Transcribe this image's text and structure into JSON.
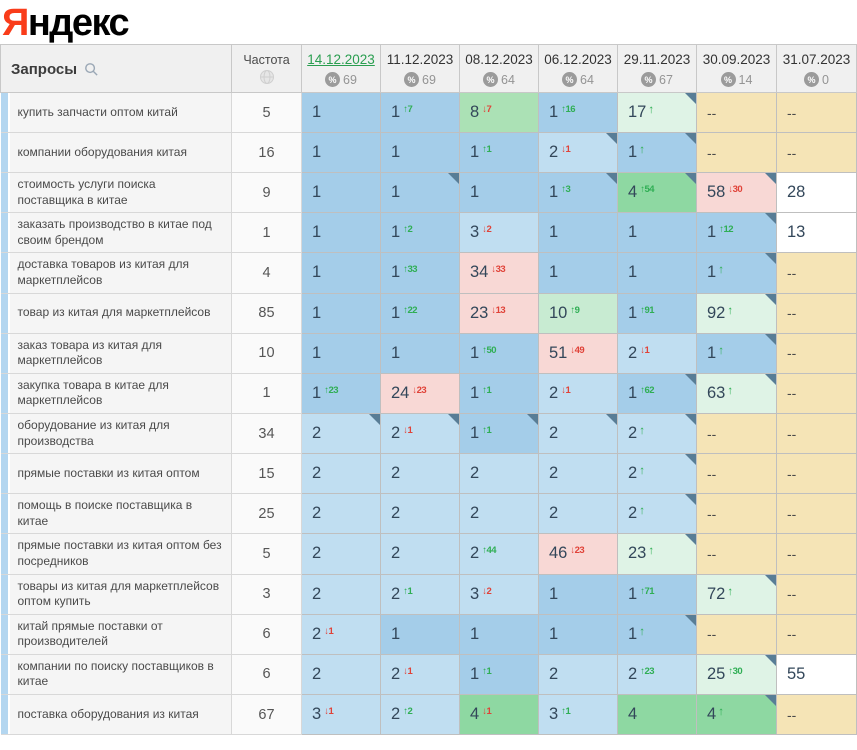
{
  "logo": {
    "first_letter": "Я",
    "rest": "ндекс"
  },
  "colors": {
    "blue": "#a4cde9",
    "lightblue": "#c0def1",
    "green4": "#8ed8a2",
    "green8": "#abe1b5",
    "green10": "#c8ebd2",
    "palegreen": "#dff3e6",
    "pink": "#f8d8d5",
    "beige": "#f5e4b6",
    "white": "#ffffff",
    "up": "#2fae54",
    "down": "#e04238",
    "selected_date": "#2a9e50",
    "corner": "#587d96"
  },
  "table": {
    "queries_header": "Запросы",
    "frequency_header": "Частота",
    "no_data_text": "--",
    "date_columns": [
      {
        "label": "14.12.2023",
        "count": "69",
        "selected": true
      },
      {
        "label": "11.12.2023",
        "count": "69",
        "selected": false
      },
      {
        "label": "08.12.2023",
        "count": "64",
        "selected": false
      },
      {
        "label": "06.12.2023",
        "count": "64",
        "selected": false
      },
      {
        "label": "29.11.2023",
        "count": "67",
        "selected": false
      },
      {
        "label": "30.09.2023",
        "count": "14",
        "selected": false
      },
      {
        "label": "31.07.2023",
        "count": "0",
        "selected": false
      }
    ],
    "rows": [
      {
        "query": "купить запчасти оптом китай",
        "frequency": "5",
        "cells": [
          {
            "value": "1",
            "color": "blue"
          },
          {
            "value": "1",
            "change": "7",
            "dir": "up",
            "color": "blue"
          },
          {
            "value": "8",
            "change": "7",
            "dir": "down",
            "color": "green8"
          },
          {
            "value": "1",
            "change": "16",
            "dir": "up",
            "color": "blue"
          },
          {
            "value": "17",
            "dir": "up",
            "color": "palegreen",
            "corner": true
          },
          {
            "value": "--",
            "color": "beige"
          },
          {
            "value": "--",
            "color": "beige"
          }
        ]
      },
      {
        "query": "компании оборудования китая",
        "frequency": "16",
        "cells": [
          {
            "value": "1",
            "color": "blue"
          },
          {
            "value": "1",
            "color": "blue"
          },
          {
            "value": "1",
            "change": "1",
            "dir": "up",
            "color": "blue"
          },
          {
            "value": "2",
            "change": "1",
            "dir": "down",
            "color": "lightblue",
            "corner": true
          },
          {
            "value": "1",
            "dir": "up",
            "color": "blue",
            "corner": true
          },
          {
            "value": "--",
            "color": "beige"
          },
          {
            "value": "--",
            "color": "beige"
          }
        ]
      },
      {
        "query": "стоимость услуги поиска поставщика в китае",
        "frequency": "9",
        "cells": [
          {
            "value": "1",
            "color": "blue"
          },
          {
            "value": "1",
            "color": "blue",
            "corner": true
          },
          {
            "value": "1",
            "color": "blue"
          },
          {
            "value": "1",
            "change": "3",
            "dir": "up",
            "color": "blue",
            "corner": true
          },
          {
            "value": "4",
            "change": "54",
            "dir": "up",
            "color": "green4",
            "corner": true
          },
          {
            "value": "58",
            "change": "30",
            "dir": "down",
            "color": "pink",
            "corner": true
          },
          {
            "value": "28",
            "color": "white"
          }
        ]
      },
      {
        "query": "заказать производство в китае под своим брендом",
        "frequency": "1",
        "cells": [
          {
            "value": "1",
            "color": "blue"
          },
          {
            "value": "1",
            "change": "2",
            "dir": "up",
            "color": "blue"
          },
          {
            "value": "3",
            "change": "2",
            "dir": "down",
            "color": "lightblue"
          },
          {
            "value": "1",
            "color": "blue"
          },
          {
            "value": "1",
            "color": "blue"
          },
          {
            "value": "1",
            "change": "12",
            "dir": "up",
            "color": "blue",
            "corner": true
          },
          {
            "value": "13",
            "color": "white"
          }
        ]
      },
      {
        "query": "доставка товаров из китая для маркетплейсов",
        "frequency": "4",
        "cells": [
          {
            "value": "1",
            "color": "blue"
          },
          {
            "value": "1",
            "change": "33",
            "dir": "up",
            "color": "blue"
          },
          {
            "value": "34",
            "change": "33",
            "dir": "down",
            "color": "pink"
          },
          {
            "value": "1",
            "color": "blue"
          },
          {
            "value": "1",
            "color": "blue"
          },
          {
            "value": "1",
            "dir": "up",
            "color": "blue",
            "corner": true
          },
          {
            "value": "--",
            "color": "beige"
          }
        ]
      },
      {
        "query": "товар из китая для маркетплейсов",
        "frequency": "85",
        "cells": [
          {
            "value": "1",
            "color": "blue"
          },
          {
            "value": "1",
            "change": "22",
            "dir": "up",
            "color": "blue"
          },
          {
            "value": "23",
            "change": "13",
            "dir": "down",
            "color": "pink"
          },
          {
            "value": "10",
            "change": "9",
            "dir": "up",
            "color": "green10"
          },
          {
            "value": "1",
            "change": "91",
            "dir": "up",
            "color": "blue"
          },
          {
            "value": "92",
            "dir": "up",
            "color": "palegreen",
            "corner": true
          },
          {
            "value": "--",
            "color": "beige"
          }
        ]
      },
      {
        "query": "заказ товара из китая для маркетплейсов",
        "frequency": "10",
        "cells": [
          {
            "value": "1",
            "color": "blue"
          },
          {
            "value": "1",
            "color": "blue"
          },
          {
            "value": "1",
            "change": "50",
            "dir": "up",
            "color": "blue"
          },
          {
            "value": "51",
            "change": "49",
            "dir": "down",
            "color": "pink"
          },
          {
            "value": "2",
            "change": "1",
            "dir": "down",
            "color": "lightblue"
          },
          {
            "value": "1",
            "dir": "up",
            "color": "blue",
            "corner": true
          },
          {
            "value": "--",
            "color": "beige"
          }
        ]
      },
      {
        "query": "закупка товара в китае для маркетплейсов",
        "frequency": "1",
        "cells": [
          {
            "value": "1",
            "change": "23",
            "dir": "up",
            "color": "blue"
          },
          {
            "value": "24",
            "change": "23",
            "dir": "down",
            "color": "pink"
          },
          {
            "value": "1",
            "change": "1",
            "dir": "up",
            "color": "blue"
          },
          {
            "value": "2",
            "change": "1",
            "dir": "down",
            "color": "lightblue"
          },
          {
            "value": "1",
            "change": "62",
            "dir": "up",
            "color": "blue",
            "corner": true
          },
          {
            "value": "63",
            "dir": "up",
            "color": "palegreen",
            "corner": true
          },
          {
            "value": "--",
            "color": "beige"
          }
        ]
      },
      {
        "query": "оборудование из китая для производства",
        "frequency": "34",
        "cells": [
          {
            "value": "2",
            "color": "lightblue",
            "corner": true
          },
          {
            "value": "2",
            "change": "1",
            "dir": "down",
            "color": "lightblue",
            "corner": true
          },
          {
            "value": "1",
            "change": "1",
            "dir": "up",
            "color": "blue",
            "corner": true
          },
          {
            "value": "2",
            "color": "lightblue",
            "corner": true
          },
          {
            "value": "2",
            "dir": "up",
            "color": "lightblue",
            "corner": true
          },
          {
            "value": "--",
            "color": "beige"
          },
          {
            "value": "--",
            "color": "beige"
          }
        ]
      },
      {
        "query": "прямые поставки из китая оптом",
        "frequency": "15",
        "cells": [
          {
            "value": "2",
            "color": "lightblue"
          },
          {
            "value": "2",
            "color": "lightblue"
          },
          {
            "value": "2",
            "color": "lightblue"
          },
          {
            "value": "2",
            "color": "lightblue"
          },
          {
            "value": "2",
            "dir": "up",
            "color": "lightblue",
            "corner": true
          },
          {
            "value": "--",
            "color": "beige"
          },
          {
            "value": "--",
            "color": "beige"
          }
        ]
      },
      {
        "query": "помощь в поиске поставщика в китае",
        "frequency": "25",
        "cells": [
          {
            "value": "2",
            "color": "lightblue"
          },
          {
            "value": "2",
            "color": "lightblue"
          },
          {
            "value": "2",
            "color": "lightblue"
          },
          {
            "value": "2",
            "color": "lightblue"
          },
          {
            "value": "2",
            "dir": "up",
            "color": "lightblue",
            "corner": true
          },
          {
            "value": "--",
            "color": "beige"
          },
          {
            "value": "--",
            "color": "beige"
          }
        ]
      },
      {
        "query": "прямые поставки из китая оптом без посредников",
        "frequency": "5",
        "cells": [
          {
            "value": "2",
            "color": "lightblue"
          },
          {
            "value": "2",
            "color": "lightblue"
          },
          {
            "value": "2",
            "change": "44",
            "dir": "up",
            "color": "lightblue"
          },
          {
            "value": "46",
            "change": "23",
            "dir": "down",
            "color": "pink"
          },
          {
            "value": "23",
            "dir": "up",
            "color": "palegreen",
            "corner": true
          },
          {
            "value": "--",
            "color": "beige"
          },
          {
            "value": "--",
            "color": "beige"
          }
        ]
      },
      {
        "query": "товары из китая для маркетплейсов оптом купить",
        "frequency": "3",
        "cells": [
          {
            "value": "2",
            "color": "lightblue"
          },
          {
            "value": "2",
            "change": "1",
            "dir": "up",
            "color": "lightblue"
          },
          {
            "value": "3",
            "change": "2",
            "dir": "down",
            "color": "lightblue"
          },
          {
            "value": "1",
            "color": "blue"
          },
          {
            "value": "1",
            "change": "71",
            "dir": "up",
            "color": "blue"
          },
          {
            "value": "72",
            "dir": "up",
            "color": "palegreen",
            "corner": true
          },
          {
            "value": "--",
            "color": "beige"
          }
        ]
      },
      {
        "query": "китай прямые поставки от производителей",
        "frequency": "6",
        "cells": [
          {
            "value": "2",
            "change": "1",
            "dir": "down",
            "color": "lightblue"
          },
          {
            "value": "1",
            "color": "blue"
          },
          {
            "value": "1",
            "color": "blue"
          },
          {
            "value": "1",
            "color": "blue"
          },
          {
            "value": "1",
            "dir": "up",
            "color": "blue",
            "corner": true
          },
          {
            "value": "--",
            "color": "beige"
          },
          {
            "value": "--",
            "color": "beige"
          }
        ]
      },
      {
        "query": "компании по поиску поставщиков в китае",
        "frequency": "6",
        "cells": [
          {
            "value": "2",
            "color": "lightblue"
          },
          {
            "value": "2",
            "change": "1",
            "dir": "down",
            "color": "lightblue"
          },
          {
            "value": "1",
            "change": "1",
            "dir": "up",
            "color": "blue"
          },
          {
            "value": "2",
            "color": "lightblue"
          },
          {
            "value": "2",
            "change": "23",
            "dir": "up",
            "color": "lightblue"
          },
          {
            "value": "25",
            "change": "30",
            "dir": "up",
            "color": "palegreen",
            "corner": true
          },
          {
            "value": "55",
            "color": "white"
          }
        ]
      },
      {
        "query": "поставка оборудования из китая",
        "frequency": "67",
        "cells": [
          {
            "value": "3",
            "change": "1",
            "dir": "down",
            "color": "lightblue"
          },
          {
            "value": "2",
            "change": "2",
            "dir": "up",
            "color": "lightblue"
          },
          {
            "value": "4",
            "change": "1",
            "dir": "down",
            "color": "green4"
          },
          {
            "value": "3",
            "change": "1",
            "dir": "up",
            "color": "lightblue"
          },
          {
            "value": "4",
            "color": "green4"
          },
          {
            "value": "4",
            "dir": "up",
            "color": "green4",
            "corner": true
          },
          {
            "value": "--",
            "color": "beige"
          }
        ]
      }
    ]
  }
}
